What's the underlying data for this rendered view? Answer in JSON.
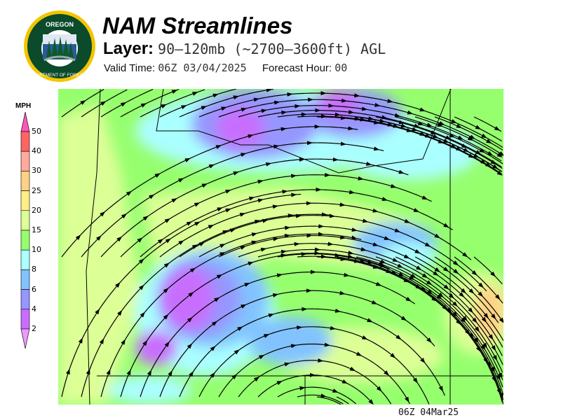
{
  "header": {
    "title": "NAM Streamlines",
    "layer_label": "Layer:",
    "layer_value": "90–120mb (~2700–3600ft) AGL",
    "valid_label": "Valid Time:",
    "valid_value": "06Z 03/04/2025",
    "forecast_label": "Forecast Hour:",
    "forecast_value": "00"
  },
  "logo": {
    "text_top": "OREGON",
    "text_bottom": "DEPARTMENT OF FORESTRY",
    "colors": {
      "ring": "#f2c500",
      "field": "#0b4a2a"
    }
  },
  "legend": {
    "unit": "MPH",
    "ticks": [
      "50",
      "40",
      "30",
      "25",
      "20",
      "15",
      "10",
      "8",
      "6",
      "4",
      "2"
    ],
    "top_arrow_color": "#ff55bb",
    "bottom_arrow_color": "#ee99ff",
    "bins": [
      {
        "range": "40-50",
        "color": "#ff6464"
      },
      {
        "range": "30-40",
        "color": "#ffaa9c"
      },
      {
        "range": "25-30",
        "color": "#ffd186"
      },
      {
        "range": "20-25",
        "color": "#ffed86"
      },
      {
        "range": "15-20",
        "color": "#dcff96"
      },
      {
        "range": "10-15",
        "color": "#96ff6e"
      },
      {
        "range": "8-10",
        "color": "#aaffff"
      },
      {
        "range": "6-8",
        "color": "#82c3ff"
      },
      {
        "range": "4-6",
        "color": "#9696ff"
      },
      {
        "range": "2-4",
        "color": "#c86eff"
      }
    ]
  },
  "footer": {
    "timestamp": "06Z 04Mar25"
  }
}
